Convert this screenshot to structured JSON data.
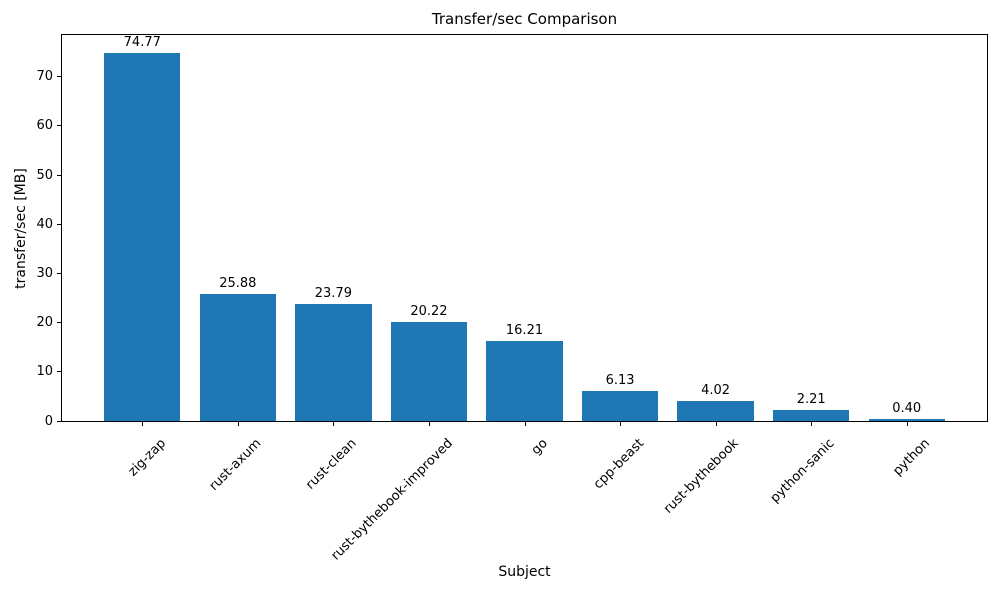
{
  "chart_data": {
    "type": "bar",
    "title": "Transfer/sec Comparison",
    "xlabel": "Subject",
    "ylabel": "transfer/sec [MB]",
    "categories": [
      "zig-zap",
      "rust-axum",
      "rust-clean",
      "rust-bythebook-improved",
      "go",
      "cpp-beast",
      "rust-bythebook",
      "python-sanic",
      "python"
    ],
    "values": [
      74.77,
      25.88,
      23.79,
      20.22,
      16.21,
      6.13,
      4.02,
      2.21,
      0.4
    ],
    "data_label_format": "2-decimals",
    "bar_color": "#1f77b4",
    "text_color": "#000000",
    "background_color": "#ffffff",
    "ylim": [
      0,
      78.5
    ],
    "yticks": [
      0,
      10,
      20,
      30,
      40,
      50,
      60,
      70
    ],
    "x_tick_rotation_degrees": 45,
    "grid": false,
    "legend": "none"
  }
}
